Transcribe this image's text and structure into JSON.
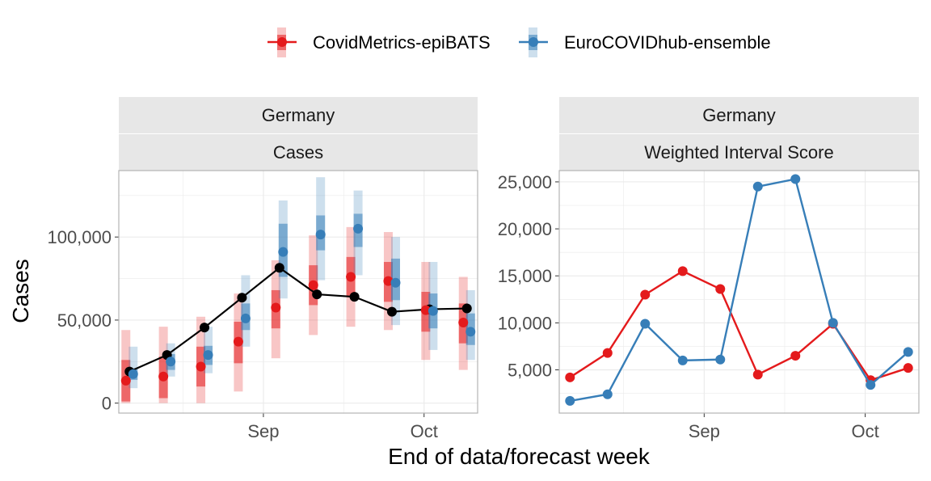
{
  "legend": {
    "items": [
      {
        "label": "CovidMetrics-epiBATS",
        "color": "#E41A1C"
      },
      {
        "label": "EuroCOVIDhub-ensemble",
        "color": "#377EB8"
      }
    ]
  },
  "axes": {
    "xlabel": "End of data/forecast week",
    "ylabel": "Cases"
  },
  "chart_data": [
    {
      "type": "line",
      "panel": "left",
      "strips": [
        "Germany",
        "Cases"
      ],
      "x": [
        "2021-08-07",
        "2021-08-14",
        "2021-08-21",
        "2021-08-28",
        "2021-09-04",
        "2021-09-11",
        "2021-09-18",
        "2021-09-25",
        "2021-10-02",
        "2021-10-09"
      ],
      "x_ticks": [
        {
          "date": "2021-09-01",
          "label": "Sep"
        },
        {
          "date": "2021-10-01",
          "label": "Oct"
        }
      ],
      "y_ticks": [
        {
          "value": 0,
          "label": "0"
        },
        {
          "value": 50000,
          "label": "50,000"
        },
        {
          "value": 100000,
          "label": "100,000"
        }
      ],
      "ylim": [
        -6000,
        140000
      ],
      "grid": true,
      "observed": {
        "color": "#000000",
        "values": [
          19000,
          29000,
          45500,
          63500,
          81500,
          65500,
          64000,
          55000,
          56500,
          57000
        ]
      },
      "series": [
        {
          "name": "CovidMetrics-epiBATS",
          "color": "#E41A1C",
          "median": [
            13500,
            16000,
            22000,
            37000,
            57500,
            71000,
            76000,
            73500,
            56000,
            48500
          ],
          "inner": [
            [
              1000,
              26000
            ],
            [
              3000,
              28000
            ],
            [
              10000,
              34000
            ],
            [
              24000,
              49000
            ],
            [
              45000,
              68000
            ],
            [
              59000,
              83000
            ],
            [
              64000,
              88000
            ],
            [
              61000,
              85000
            ],
            [
              43000,
              67000
            ],
            [
              36000,
              60000
            ]
          ],
          "outer": [
            [
              0,
              44000
            ],
            [
              0,
              46000
            ],
            [
              0,
              52000
            ],
            [
              7000,
              66000
            ],
            [
              27000,
              86000
            ],
            [
              41000,
              101000
            ],
            [
              46000,
              106000
            ],
            [
              44000,
              103000
            ],
            [
              26000,
              85000
            ],
            [
              20000,
              76000
            ]
          ]
        },
        {
          "name": "EuroCOVIDhub-ensemble",
          "color": "#377EB8",
          "median": [
            17500,
            25000,
            29000,
            51000,
            91000,
            101500,
            105000,
            72500,
            55500,
            43000
          ],
          "inner": [
            [
              14000,
              21000
            ],
            [
              20000,
              29500
            ],
            [
              23000,
              34500
            ],
            [
              44000,
              60000
            ],
            [
              76000,
              108000
            ],
            [
              92000,
              113000
            ],
            [
              94000,
              114000
            ],
            [
              62000,
              87000
            ],
            [
              45000,
              66000
            ],
            [
              35000,
              54000
            ]
          ],
          "outer": [
            [
              9000,
              34000
            ],
            [
              16000,
              36000
            ],
            [
              18000,
              46000
            ],
            [
              34000,
              77000
            ],
            [
              63000,
              122000
            ],
            [
              74000,
              136000
            ],
            [
              77000,
              128000
            ],
            [
              47000,
              100000
            ],
            [
              32000,
              85000
            ],
            [
              26000,
              68000
            ]
          ]
        }
      ]
    },
    {
      "type": "line",
      "panel": "right",
      "strips": [
        "Germany",
        "Weighted Interval Score"
      ],
      "x": [
        "2021-08-07",
        "2021-08-14",
        "2021-08-21",
        "2021-08-28",
        "2021-09-04",
        "2021-09-11",
        "2021-09-18",
        "2021-09-25",
        "2021-10-02",
        "2021-10-09"
      ],
      "x_ticks": [
        {
          "date": "2021-09-01",
          "label": "Sep"
        },
        {
          "date": "2021-10-01",
          "label": "Oct"
        }
      ],
      "y_ticks": [
        {
          "value": 5000,
          "label": "5,000"
        },
        {
          "value": 10000,
          "label": "10,000"
        },
        {
          "value": 15000,
          "label": "15,000"
        },
        {
          "value": 20000,
          "label": "20,000"
        },
        {
          "value": 25000,
          "label": "25,000"
        }
      ],
      "ylim": [
        400,
        26200
      ],
      "grid": true,
      "series": [
        {
          "name": "CovidMetrics-epiBATS",
          "color": "#E41A1C",
          "values": [
            4200,
            6800,
            13000,
            15500,
            13600,
            4500,
            6500,
            9900,
            3900,
            5200
          ]
        },
        {
          "name": "EuroCOVIDhub-ensemble",
          "color": "#377EB8",
          "values": [
            1700,
            2400,
            9900,
            6000,
            6100,
            24500,
            25300,
            10000,
            3400,
            6900
          ]
        }
      ]
    }
  ]
}
